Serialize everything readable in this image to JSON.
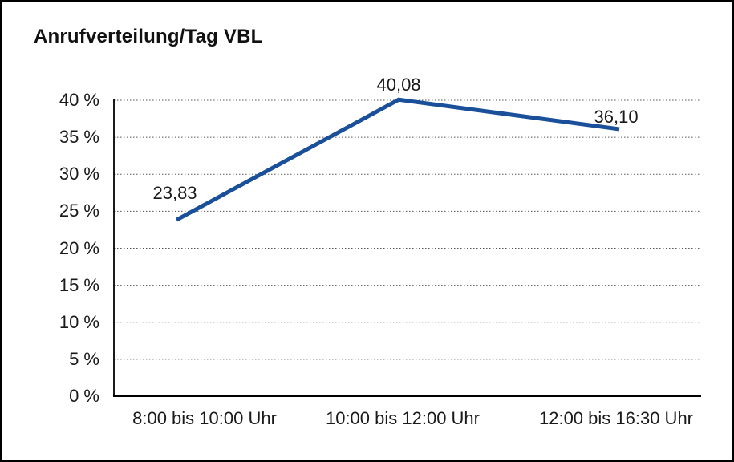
{
  "frame": {
    "background_color": "#ffffff",
    "border_color": "#000000"
  },
  "chart_data": {
    "type": "line",
    "title": "Anrufverteilung/Tag VBL",
    "categories": [
      "8:00 bis 10:00 Uhr",
      "10:00 bis 12:00 Uhr",
      "12:00 bis 16:30 Uhr"
    ],
    "values": [
      23.83,
      40.08,
      36.1
    ],
    "point_labels": [
      "23,83",
      "40,08",
      "36,10"
    ],
    "y_ticks": [
      {
        "value": 0,
        "label": "0 %"
      },
      {
        "value": 5,
        "label": "5 %"
      },
      {
        "value": 10,
        "label": "10 %"
      },
      {
        "value": 15,
        "label": "15 %"
      },
      {
        "value": 20,
        "label": "20 %"
      },
      {
        "value": 25,
        "label": "25 %"
      },
      {
        "value": 30,
        "label": "30 %"
      },
      {
        "value": 35,
        "label": "35 %"
      },
      {
        "value": 40,
        "label": "40 %"
      }
    ],
    "ylim": [
      0,
      40
    ],
    "xlabel": "",
    "ylabel": "",
    "grid": true,
    "gridline_style": "dotted",
    "legend": false,
    "line_color": "#1a4f9a",
    "gridline_color": "#555555",
    "axis_color": "#000000",
    "text_color": "#1a1a1a"
  }
}
